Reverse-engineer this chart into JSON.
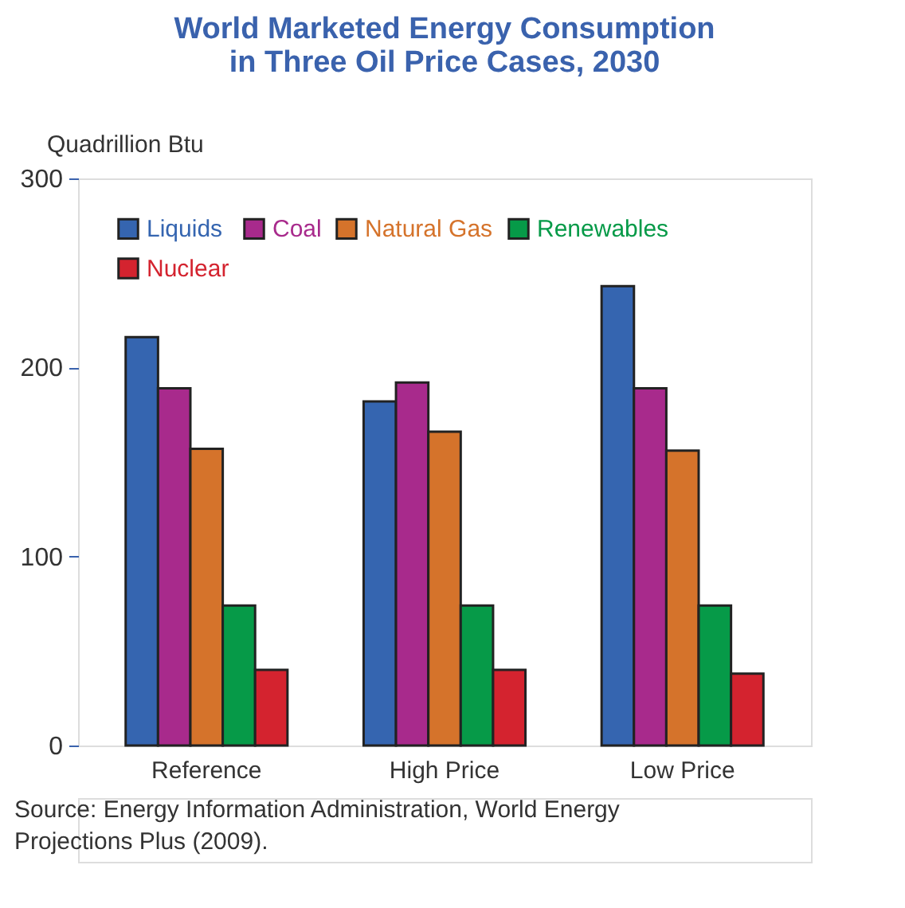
{
  "chart_data": {
    "type": "bar",
    "title": [
      "World Marketed Energy Consumption",
      "in Three Oil Price Cases, 2030"
    ],
    "ylabel": "Quadrillion Btu",
    "categories": [
      "Reference",
      "High Price",
      "Low Price"
    ],
    "series": [
      {
        "name": "Liquids",
        "color": "#3565b0",
        "values": [
          216,
          182,
          243
        ]
      },
      {
        "name": "Coal",
        "color": "#a82a8c",
        "values": [
          189,
          192,
          189
        ]
      },
      {
        "name": "Natural Gas",
        "color": "#d5732b",
        "values": [
          157,
          166,
          156
        ]
      },
      {
        "name": "Renewables",
        "color": "#069a48",
        "values": [
          74,
          74,
          74
        ]
      },
      {
        "name": "Nuclear",
        "color": "#d4232f",
        "values": [
          40,
          40,
          38
        ]
      }
    ],
    "ylim": [
      0,
      300
    ],
    "yticks": [
      0,
      100,
      200,
      300
    ],
    "grid": false,
    "legend": "top left",
    "annotations": [
      "Source: Energy Information Administration, World Energy Projections Plus (2009)."
    ]
  }
}
